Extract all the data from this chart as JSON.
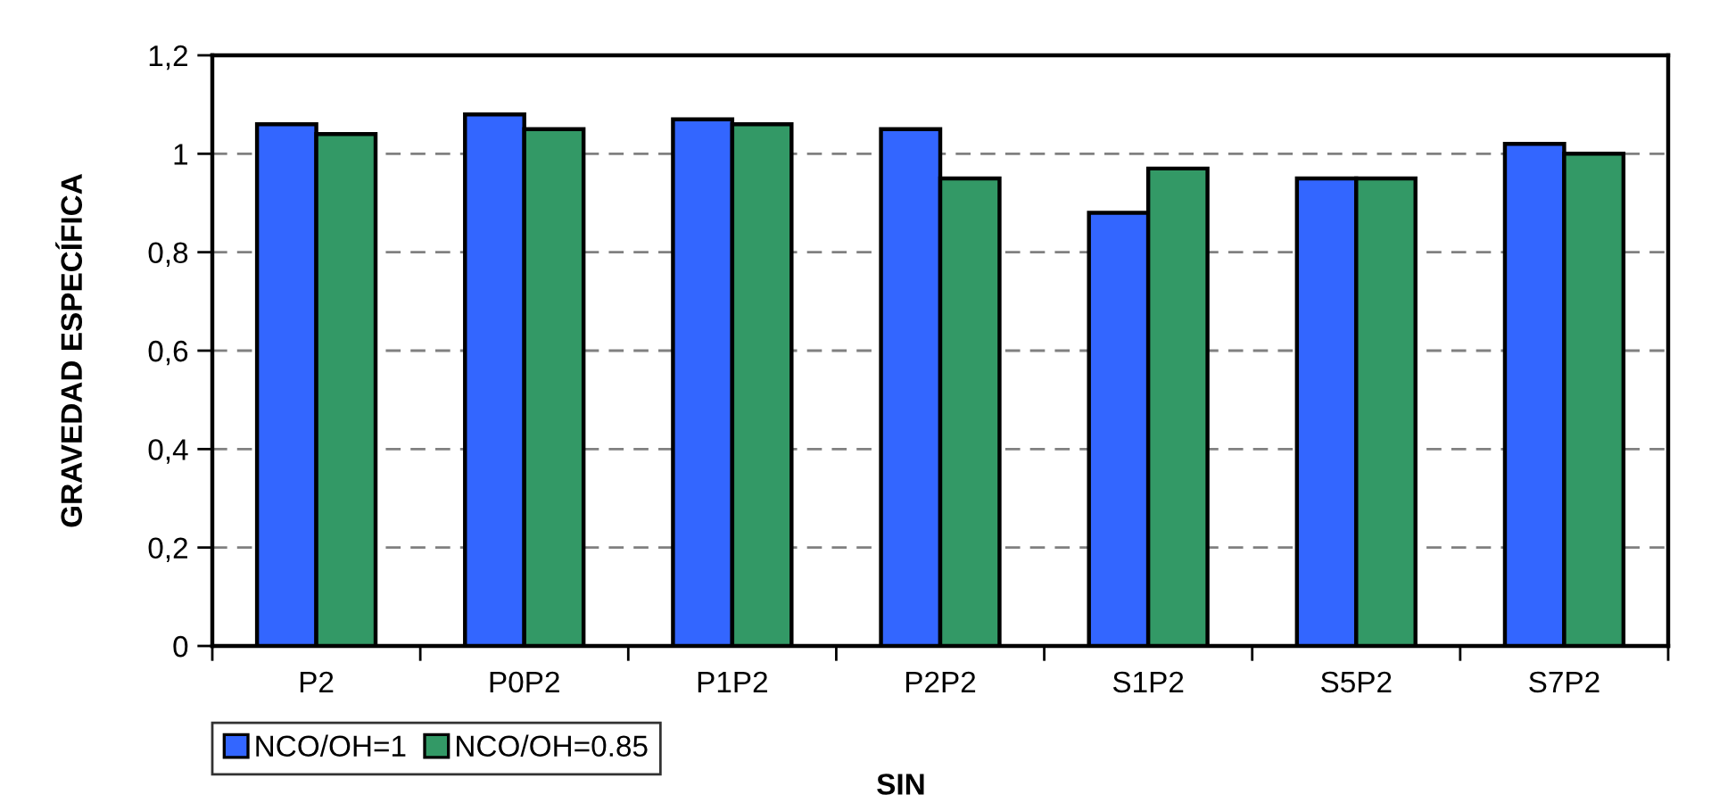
{
  "chart_data": {
    "type": "bar",
    "xlabel": "SIN",
    "ylabel": "GRAVEDAD ESPECÍFICA",
    "categories": [
      "P2",
      "P0P2",
      "P1P2",
      "P2P2",
      "S1P2",
      "S5P2",
      "S7P2"
    ],
    "series": [
      {
        "name": "NCO/OH=1",
        "color": "#3366ff",
        "values": [
          1.06,
          1.08,
          1.07,
          1.05,
          0.88,
          0.95,
          1.02
        ]
      },
      {
        "name": "NCO/OH=0.85",
        "color": "#339966",
        "values": [
          1.04,
          1.05,
          1.06,
          0.95,
          0.97,
          0.95,
          1.0
        ]
      }
    ],
    "ylim": [
      0,
      1.2
    ],
    "yticks": [
      0,
      {
        "value": 0.2,
        "label": "0,2"
      },
      {
        "value": 0.4,
        "label": "0,4"
      },
      {
        "value": 0.6,
        "label": "0,6"
      },
      {
        "value": 0.8,
        "label": "0,8"
      },
      1,
      {
        "value": 1.2,
        "label": "1,2"
      }
    ],
    "grid": "y",
    "legend": "bottom left"
  }
}
